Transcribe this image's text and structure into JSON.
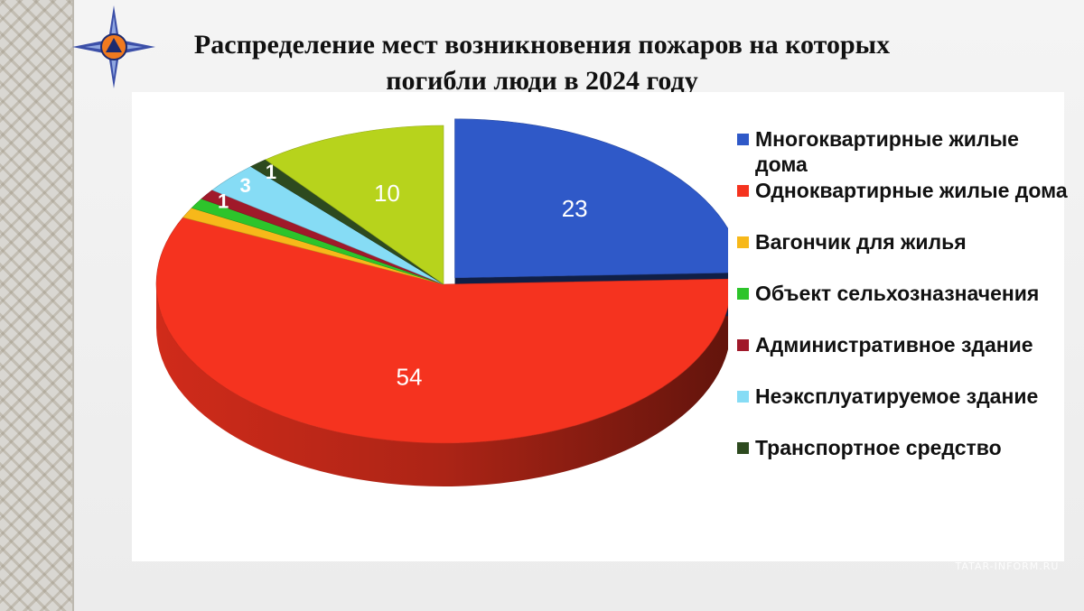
{
  "title": "Распределение мест возникновения пожаров на которых погибли люди в 2024 году",
  "colors": {
    "multi": "#2f59c8",
    "single": "#f5331f",
    "trailer": "#f7b81a",
    "agri": "#2dc42b",
    "admin": "#a0192a",
    "unused": "#86dcf5",
    "transport": "#2d4a1f",
    "other": "#b7d31c"
  },
  "chart_data": {
    "type": "pie",
    "title": "Распределение мест возникновения пожаров на которых погибли люди в 2024 году",
    "legend_position": "right",
    "three_d": true,
    "slices": [
      {
        "label": "Многоквартирные жилые дома",
        "value": 23,
        "color_key": "multi",
        "data_label": "23",
        "exploded": true
      },
      {
        "label": "Одноквартирные жилые дома",
        "value": 54,
        "color_key": "single",
        "data_label": "54"
      },
      {
        "label": "Вагончик для жилья",
        "value": 1,
        "color_key": "trailer",
        "data_label": ""
      },
      {
        "label": "Объект сельхозназначения",
        "value": 1,
        "color_key": "agri",
        "data_label": ""
      },
      {
        "label": "Административное здание",
        "value": 1,
        "color_key": "admin",
        "data_label": "1"
      },
      {
        "label": "Неэксплуатируемое здание",
        "value": 3,
        "color_key": "unused",
        "data_label": "3"
      },
      {
        "label": "Транспортное средство",
        "value": 1,
        "color_key": "transport",
        "data_label": "1"
      },
      {
        "label": "",
        "value": 10,
        "color_key": "other",
        "data_label": "10",
        "in_legend": false
      }
    ]
  },
  "legend": [
    {
      "label": "Многоквартирные жилые дома",
      "color_key": "multi"
    },
    {
      "label": "Одноквартирные жилые дома",
      "color_key": "single"
    },
    {
      "label": "Вагончик для жилья",
      "color_key": "trailer"
    },
    {
      "label": "Объект сельхозназначения",
      "color_key": "agri"
    },
    {
      "label": "Административное здание",
      "color_key": "admin"
    },
    {
      "label": "Неэксплуатируемое здание",
      "color_key": "unused"
    },
    {
      "label": "Транспортное средство",
      "color_key": "transport"
    }
  ],
  "watermark": {
    "line1": "ТАТАР",
    "line2": "ИНФОРМ",
    "line3": "TATAR-INFORM.RU"
  },
  "logo": {
    "icon": "emergency-star-emblem-icon"
  }
}
